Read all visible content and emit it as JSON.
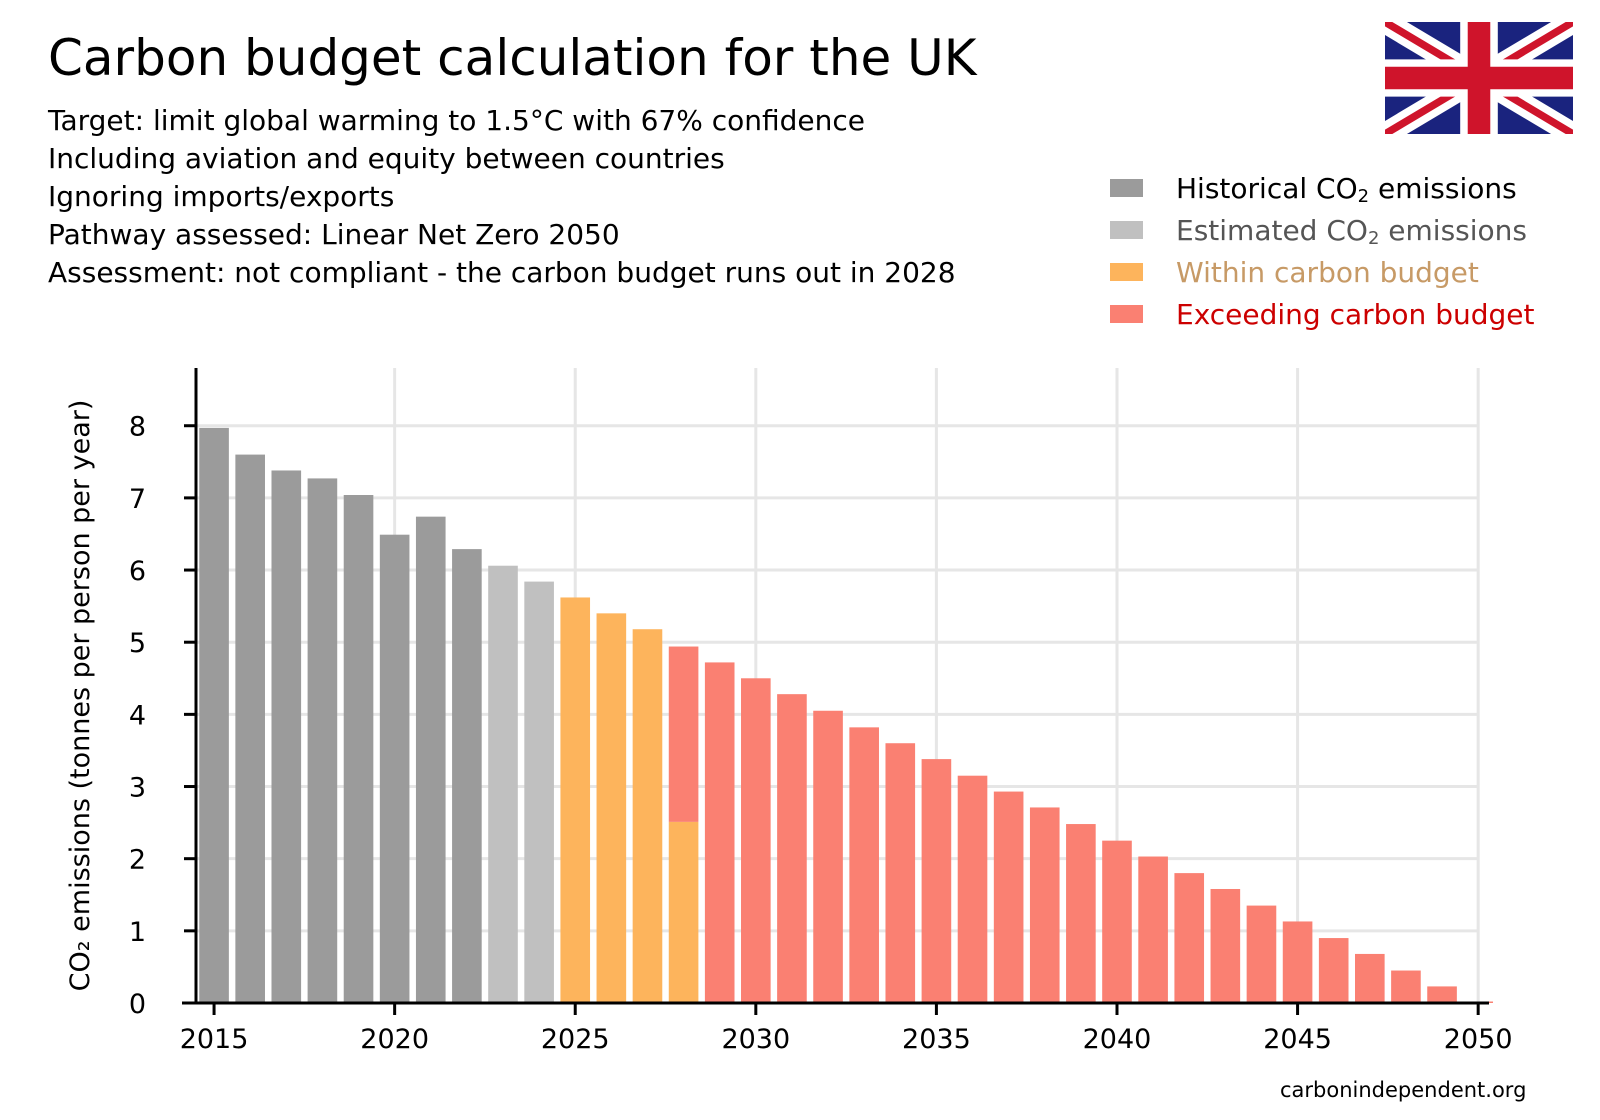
{
  "title": "Carbon budget calculation for the UK",
  "subtitles": [
    "Target: limit global warming to 1.5°C with 67% confidence",
    "Including aviation and equity between countries",
    "Ignoring imports/exports",
    "Pathway assessed: Linear Net Zero 2050",
    "Assessment: not compliant - the carbon budget runs out in 2028"
  ],
  "flag": {
    "name": "uk-flag",
    "colors": {
      "blue": "#1a237e",
      "red": "#cf142b",
      "white": "#ffffff"
    }
  },
  "legend": [
    {
      "label_pre": "Historical CO",
      "label_sub": "2",
      "label_post": " emissions",
      "color": "#9b9b9b",
      "text_color": "#000000"
    },
    {
      "label_pre": "Estimated CO",
      "label_sub": "2",
      "label_post": " emissions",
      "color": "#c0c0c0",
      "text_color": "#555555"
    },
    {
      "label_pre": "Within carbon budget",
      "label_sub": "",
      "label_post": "",
      "color": "#fdb45c",
      "text_color": "#c79a66"
    },
    {
      "label_pre": "Exceeding carbon budget",
      "label_sub": "",
      "label_post": "",
      "color": "#fa8072",
      "text_color": "#cc0000"
    }
  ],
  "credit": "carbonindependent.org",
  "chart_data": {
    "type": "bar",
    "stacked": true,
    "xlim": [
      2014.5,
      2050.3
    ],
    "ylim": [
      0,
      8.8
    ],
    "xticks": [
      2015,
      2020,
      2025,
      2030,
      2035,
      2040,
      2045,
      2050
    ],
    "yticks": [
      0,
      1,
      2,
      3,
      4,
      5,
      6,
      7,
      8
    ],
    "ylabel": "CO₂ emissions (tonnes per person per year)",
    "grid": true,
    "colors": {
      "historical": "#9b9b9b",
      "estimated": "#c0c0c0",
      "within": "#fdb45c",
      "exceeding": "#fa8072"
    },
    "bars": [
      {
        "year": 2015,
        "historical": 7.97
      },
      {
        "year": 2016,
        "historical": 7.6
      },
      {
        "year": 2017,
        "historical": 7.38
      },
      {
        "year": 2018,
        "historical": 7.27
      },
      {
        "year": 2019,
        "historical": 7.04
      },
      {
        "year": 2020,
        "historical": 6.49
      },
      {
        "year": 2021,
        "historical": 6.74
      },
      {
        "year": 2022,
        "historical": 6.29
      },
      {
        "year": 2023,
        "estimated": 6.06
      },
      {
        "year": 2024,
        "estimated": 5.84
      },
      {
        "year": 2025,
        "within": 5.62
      },
      {
        "year": 2026,
        "within": 5.4
      },
      {
        "year": 2027,
        "within": 5.18
      },
      {
        "year": 2028,
        "within": 2.51,
        "exceeding": 2.43
      },
      {
        "year": 2029,
        "exceeding": 4.72
      },
      {
        "year": 2030,
        "exceeding": 4.5
      },
      {
        "year": 2031,
        "exceeding": 4.28
      },
      {
        "year": 2032,
        "exceeding": 4.05
      },
      {
        "year": 2033,
        "exceeding": 3.82
      },
      {
        "year": 2034,
        "exceeding": 3.6
      },
      {
        "year": 2035,
        "exceeding": 3.38
      },
      {
        "year": 2036,
        "exceeding": 3.15
      },
      {
        "year": 2037,
        "exceeding": 2.93
      },
      {
        "year": 2038,
        "exceeding": 2.71
      },
      {
        "year": 2039,
        "exceeding": 2.48
      },
      {
        "year": 2040,
        "exceeding": 2.25
      },
      {
        "year": 2041,
        "exceeding": 2.03
      },
      {
        "year": 2042,
        "exceeding": 1.8
      },
      {
        "year": 2043,
        "exceeding": 1.58
      },
      {
        "year": 2044,
        "exceeding": 1.35
      },
      {
        "year": 2045,
        "exceeding": 1.13
      },
      {
        "year": 2046,
        "exceeding": 0.9
      },
      {
        "year": 2047,
        "exceeding": 0.68
      },
      {
        "year": 2048,
        "exceeding": 0.45
      },
      {
        "year": 2049,
        "exceeding": 0.23
      },
      {
        "year": 2050,
        "exceeding": 0.0
      }
    ]
  }
}
